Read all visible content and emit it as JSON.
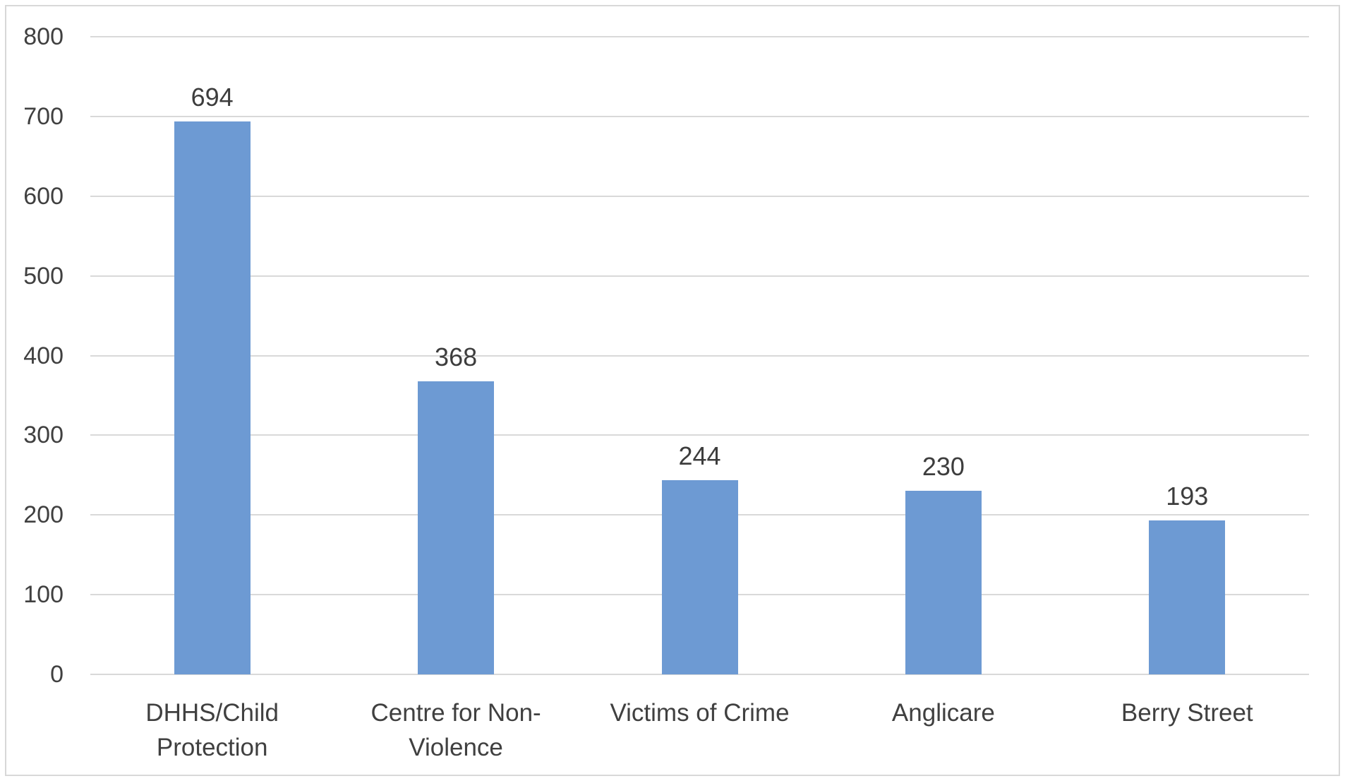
{
  "chart_data": {
    "type": "bar",
    "title": "",
    "xlabel": "",
    "ylabel": "",
    "categories": [
      "DHHS/Child Protection",
      "Centre for Non-Violence",
      "Victims of Crime",
      "Anglicare",
      "Berry Street"
    ],
    "category_label_lines": [
      [
        "DHHS/Child",
        "Protection"
      ],
      [
        "Centre for Non-",
        "Violence"
      ],
      [
        "Victims of Crime"
      ],
      [
        "Anglicare"
      ],
      [
        "Berry Street"
      ]
    ],
    "values": [
      694,
      368,
      244,
      230,
      193
    ],
    "data_labels": [
      "694",
      "368",
      "244",
      "230",
      "193"
    ],
    "ylim": [
      0,
      800
    ],
    "yticks": [
      0,
      100,
      200,
      300,
      400,
      500,
      600,
      700,
      800
    ],
    "ytick_labels": [
      "0",
      "100",
      "200",
      "300",
      "400",
      "500",
      "600",
      "700",
      "800"
    ],
    "grid": true,
    "legend": false,
    "colors": {
      "bar_fill": "#6d9ad3",
      "gridline": "#d9d9d9",
      "axis_text": "#404040",
      "data_label_text": "#3d3d3d",
      "chart_border": "#d8d8d8",
      "background": "#ffffff"
    }
  }
}
